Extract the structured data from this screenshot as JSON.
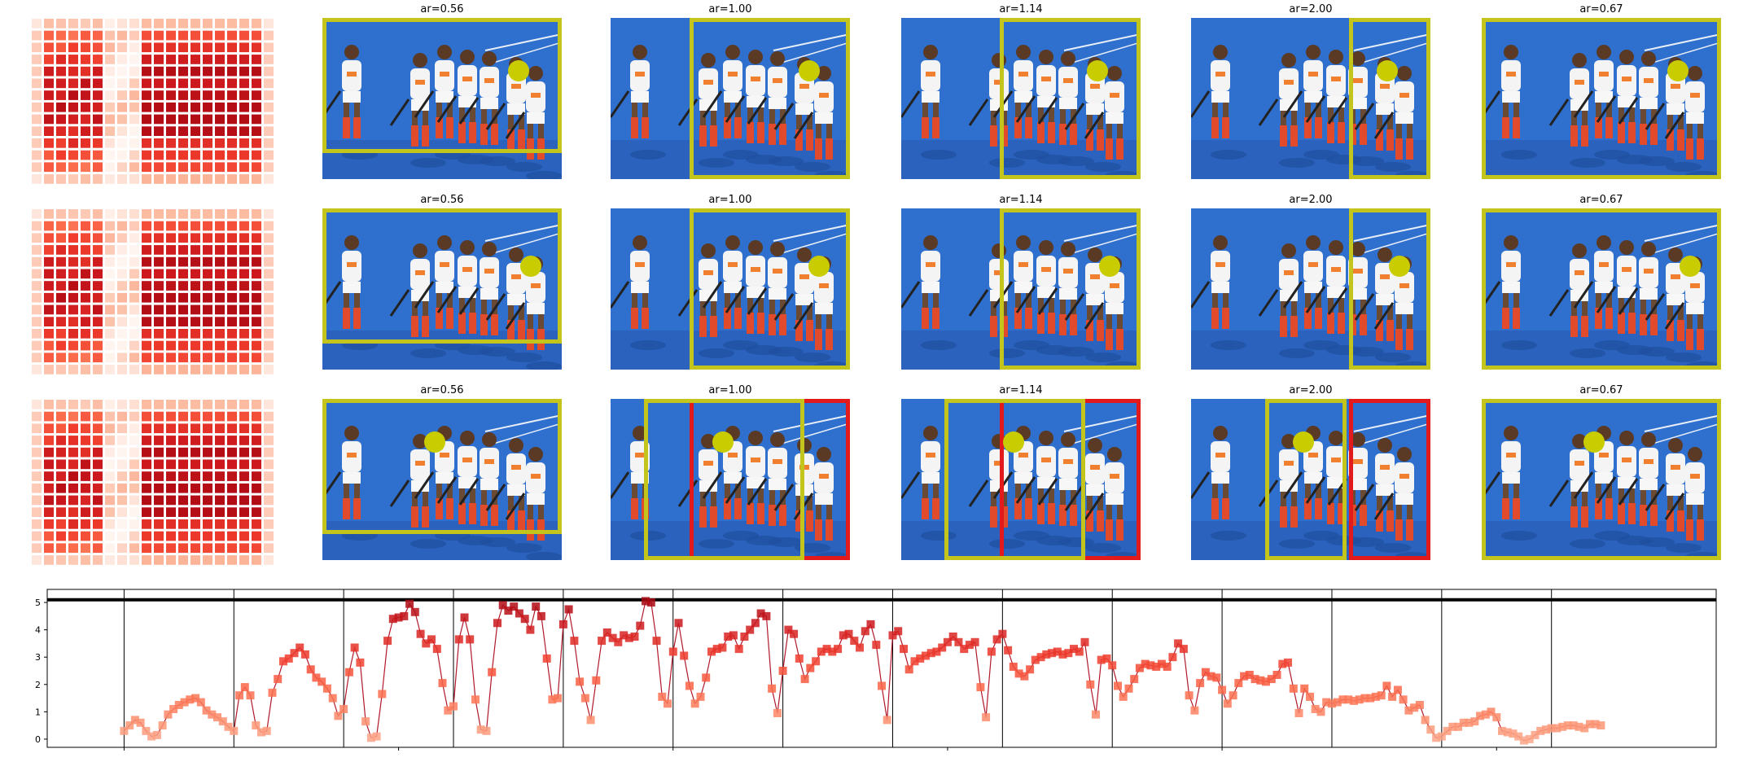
{
  "colors": {
    "frame": "#c3c41c",
    "frame_red": "#e31a1c",
    "dot": "#c8cc00",
    "court": "#2f6fce",
    "heat_low": "#fde0d2",
    "heat_high": "#99000d"
  },
  "grid_rows": [
    {
      "cells": [
        {
          "title": "ar=0.56",
          "box": [
            0.0,
            0.0,
            1.0,
            0.84
          ],
          "dot": [
            0.82,
            0.33
          ],
          "red_box": null
        },
        {
          "title": "ar=1.00",
          "box": [
            0.33,
            0.0,
            1.0,
            1.0
          ],
          "dot": [
            0.83,
            0.33
          ],
          "red_box": null
        },
        {
          "title": "ar=1.14",
          "box": [
            0.41,
            0.0,
            1.0,
            1.0
          ],
          "dot": [
            0.82,
            0.33
          ],
          "red_box": null
        },
        {
          "title": "ar=2.00",
          "box": [
            0.66,
            0.0,
            1.0,
            1.0
          ],
          "dot": [
            0.82,
            0.33
          ],
          "red_box": null
        },
        {
          "title": "ar=0.67",
          "box": [
            0.0,
            0.0,
            1.0,
            1.0
          ],
          "dot": [
            0.82,
            0.33
          ],
          "red_box": null
        }
      ]
    },
    {
      "cells": [
        {
          "title": "ar=0.56",
          "box": [
            0.0,
            0.0,
            1.0,
            0.84
          ],
          "dot": [
            0.87,
            0.36
          ],
          "red_box": null
        },
        {
          "title": "ar=1.00",
          "box": [
            0.33,
            0.0,
            1.0,
            1.0
          ],
          "dot": [
            0.87,
            0.36
          ],
          "red_box": null
        },
        {
          "title": "ar=1.14",
          "box": [
            0.41,
            0.0,
            1.0,
            1.0
          ],
          "dot": [
            0.87,
            0.36
          ],
          "red_box": null
        },
        {
          "title": "ar=2.00",
          "box": [
            0.66,
            0.0,
            1.0,
            1.0
          ],
          "dot": [
            0.87,
            0.36
          ],
          "red_box": [
            0.66,
            0.0,
            1.0,
            1.0
          ]
        },
        {
          "title": "ar=0.67",
          "box": [
            0.0,
            0.0,
            1.0,
            1.0
          ],
          "dot": [
            0.87,
            0.36
          ],
          "red_box": null
        }
      ]
    },
    {
      "cells": [
        {
          "title": "ar=0.56",
          "box": [
            0.0,
            0.0,
            1.0,
            0.84
          ],
          "dot": [
            0.47,
            0.27
          ],
          "red_box": null
        },
        {
          "title": "ar=1.00",
          "box": [
            0.14,
            0.0,
            0.81,
            1.0
          ],
          "dot": [
            0.47,
            0.27
          ],
          "red_box": [
            0.33,
            0.0,
            1.0,
            1.0
          ]
        },
        {
          "title": "ar=1.14",
          "box": [
            0.18,
            0.0,
            0.77,
            1.0
          ],
          "dot": [
            0.47,
            0.27
          ],
          "red_box": [
            0.41,
            0.0,
            1.0,
            1.0
          ]
        },
        {
          "title": "ar=2.00",
          "box": [
            0.31,
            0.0,
            0.65,
            1.0
          ],
          "dot": [
            0.47,
            0.27
          ],
          "red_box": [
            0.66,
            0.0,
            1.0,
            1.0
          ]
        },
        {
          "title": "ar=0.67",
          "box": [
            0.0,
            0.0,
            1.0,
            1.0
          ],
          "dot": [
            0.47,
            0.27
          ],
          "red_box": null
        }
      ]
    }
  ],
  "chart_data": {
    "type": "line",
    "xlim": [
      -14,
      290
    ],
    "ylim": [
      -0.3,
      5.3
    ],
    "xticks": [
      0,
      50,
      100,
      150,
      200,
      250
    ],
    "yticks": [
      0,
      1,
      2,
      3,
      4,
      5
    ],
    "hline": 5.1,
    "vlines": [
      0,
      20,
      40,
      60,
      80,
      100,
      120,
      140,
      160,
      180,
      200,
      220,
      240,
      260
    ],
    "x_start": 0,
    "y": [
      0.3,
      0.5,
      0.7,
      0.6,
      0.3,
      0.1,
      0.15,
      0.5,
      0.9,
      1.1,
      1.25,
      1.35,
      1.45,
      1.5,
      1.35,
      1.05,
      0.9,
      0.8,
      0.65,
      0.45,
      0.3,
      1.6,
      1.9,
      1.6,
      0.5,
      0.25,
      0.3,
      1.7,
      2.2,
      2.85,
      2.95,
      3.15,
      3.35,
      3.1,
      2.55,
      2.25,
      2.1,
      1.85,
      1.5,
      0.85,
      1.1,
      2.45,
      3.35,
      2.8,
      0.65,
      0.05,
      0.1,
      1.65,
      3.6,
      4.4,
      4.45,
      4.5,
      4.95,
      4.65,
      3.85,
      3.5,
      3.65,
      3.3,
      2.05,
      1.05,
      1.2,
      3.65,
      4.45,
      3.65,
      1.45,
      0.35,
      0.3,
      2.45,
      4.25,
      4.9,
      4.7,
      4.85,
      4.6,
      4.4,
      4.0,
      4.85,
      4.5,
      2.95,
      1.45,
      1.5,
      4.2,
      4.75,
      3.6,
      2.1,
      1.5,
      0.7,
      2.15,
      3.6,
      3.9,
      3.7,
      3.55,
      3.8,
      3.7,
      3.75,
      4.15,
      5.05,
      5.0,
      3.6,
      1.55,
      1.3,
      3.2,
      4.25,
      3.05,
      1.95,
      1.3,
      1.55,
      2.25,
      3.2,
      3.3,
      3.35,
      3.75,
      3.8,
      3.3,
      3.75,
      4.0,
      4.25,
      4.6,
      4.5,
      1.85,
      0.95,
      2.5,
      4.0,
      3.85,
      2.95,
      2.2,
      2.6,
      2.85,
      3.2,
      3.3,
      3.2,
      3.3,
      3.8,
      3.85,
      3.6,
      3.35,
      3.95,
      4.2,
      3.45,
      1.95,
      0.7,
      3.8,
      3.95,
      3.3,
      2.55,
      2.85,
      2.95,
      3.05,
      3.15,
      3.2,
      3.35,
      3.55,
      3.75,
      3.55,
      3.3,
      3.45,
      3.55,
      1.9,
      0.8,
      3.2,
      3.65,
      3.85,
      3.25,
      2.65,
      2.4,
      2.3,
      2.55,
      2.9,
      3.0,
      3.1,
      3.15,
      3.2,
      3.1,
      3.15,
      3.3,
      3.2,
      3.55,
      2.0,
      0.9,
      2.9,
      2.95,
      2.7,
      1.95,
      1.55,
      1.85,
      2.2,
      2.6,
      2.75,
      2.7,
      2.65,
      2.75,
      2.65,
      3.0,
      3.5,
      3.3,
      1.6,
      1.05,
      2.05,
      2.45,
      2.3,
      2.25,
      1.8,
      1.3,
      1.6,
      2.05,
      2.3,
      2.35,
      2.2,
      2.15,
      2.1,
      2.2,
      2.35,
      2.75,
      2.8,
      1.85,
      0.95,
      1.85,
      1.55,
      1.1,
      1.0,
      1.35,
      1.3,
      1.35,
      1.45,
      1.45,
      1.4,
      1.45,
      1.5,
      1.5,
      1.55,
      1.6,
      1.95,
      1.55,
      1.8,
      1.45,
      1.05,
      1.15,
      1.25,
      0.7,
      0.35,
      0.05,
      0.1,
      0.3,
      0.45,
      0.45,
      0.6,
      0.6,
      0.65,
      0.85,
      0.9,
      1.0,
      0.8,
      0.3,
      0.25,
      0.2,
      0.1,
      -0.05,
      0.0,
      0.15,
      0.3,
      0.35,
      0.4,
      0.4,
      0.45,
      0.5,
      0.5,
      0.45,
      0.4,
      0.55,
      0.55,
      0.5
    ]
  }
}
